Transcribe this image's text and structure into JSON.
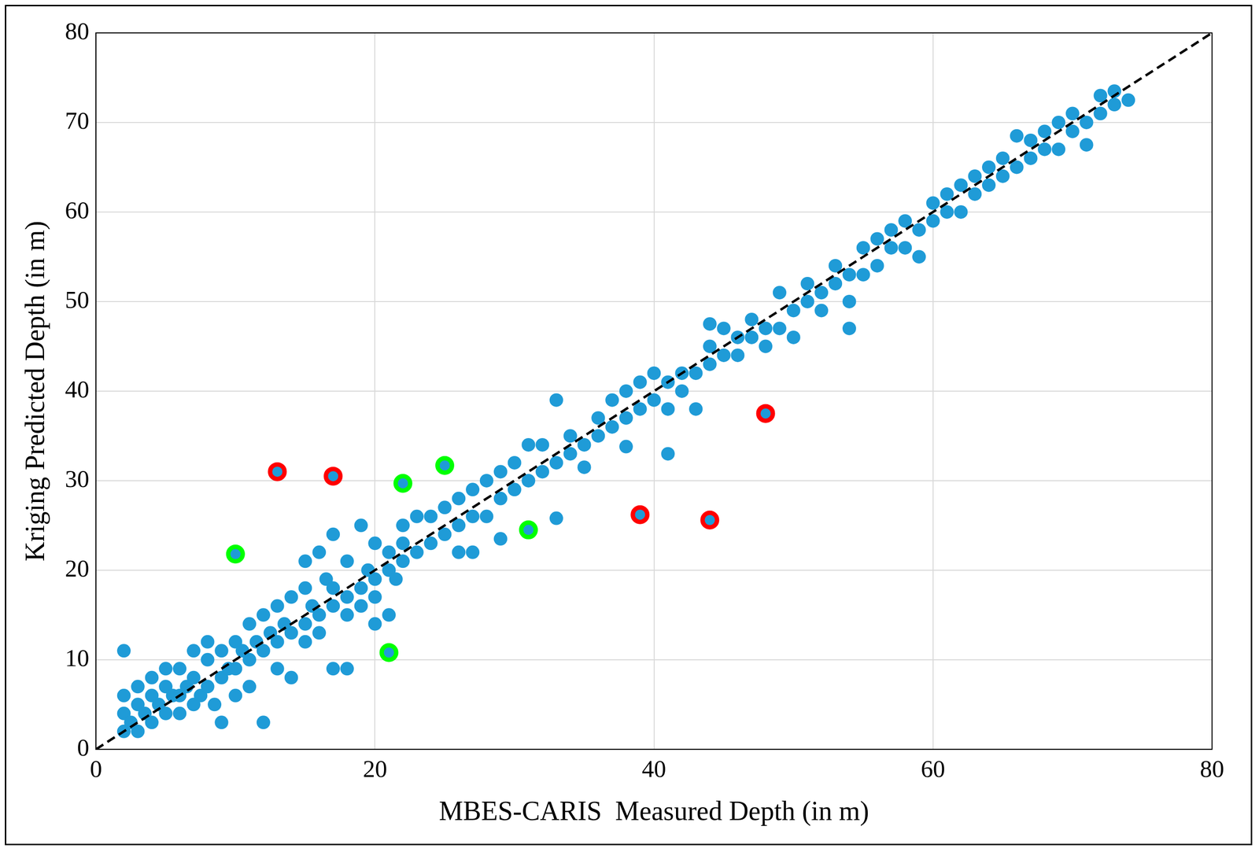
{
  "chart_data": {
    "type": "scatter",
    "x_label": "MBES-CARIS  Measured Depth (in m)",
    "y_label": "Kriging Predicted Depth (in m)",
    "xlim": [
      0,
      80
    ],
    "xticks": [
      0,
      20,
      40,
      60,
      80
    ],
    "ylim": [
      0,
      80
    ],
    "yticks": [
      0,
      10,
      20,
      30,
      40,
      50,
      60,
      70,
      80
    ],
    "grid": true,
    "series": [
      {
        "color": "#1f9bd7",
        "marker": "circle",
        "x": [
          2,
          2,
          2,
          2,
          2.5,
          3,
          3,
          3,
          3.5,
          4,
          4,
          4,
          4.5,
          5,
          5,
          5,
          5.5,
          6,
          6,
          6,
          6.5,
          7,
          7,
          7,
          7.5,
          8,
          8,
          8,
          8.5,
          9,
          9,
          9,
          9.5,
          10,
          10,
          10,
          10.5,
          11,
          11,
          11,
          11.5,
          12,
          12,
          12,
          12.5,
          13,
          13,
          13,
          13.5,
          14,
          14,
          14,
          15,
          15,
          15,
          15,
          15.5,
          16,
          16,
          16,
          16.5,
          17,
          17,
          17,
          17,
          18,
          18,
          18,
          18,
          19,
          19,
          19,
          19.5,
          20,
          20,
          20,
          20,
          21,
          21,
          21,
          21.5,
          22,
          22,
          22,
          23,
          23,
          24,
          24,
          25,
          25,
          26,
          26,
          26,
          27,
          27,
          27,
          28,
          28,
          29,
          29,
          29,
          30,
          30,
          31,
          31,
          32,
          32,
          33,
          33,
          33,
          34,
          34,
          35,
          35,
          36,
          36,
          37,
          37,
          38,
          38,
          38,
          39,
          39,
          40,
          40,
          41,
          41,
          41,
          42,
          42,
          43,
          43,
          44,
          44,
          44,
          45,
          45,
          46,
          46,
          47,
          47,
          48,
          48,
          49,
          49,
          50,
          50,
          51,
          51,
          52,
          52,
          53,
          53,
          54,
          54,
          54,
          55,
          55,
          56,
          56,
          57,
          57,
          58,
          58,
          59,
          59,
          60,
          60,
          61,
          61,
          62,
          62,
          63,
          63,
          64,
          64,
          65,
          65,
          66,
          66,
          67,
          67,
          68,
          68,
          69,
          69,
          70,
          70,
          71,
          71,
          72,
          72,
          73,
          73,
          74
        ],
        "values": [
          2,
          4,
          6,
          11,
          3,
          2,
          5,
          7,
          4,
          3,
          6,
          8,
          5,
          4,
          7,
          9,
          6,
          4,
          6,
          9,
          7,
          5,
          8,
          11,
          6,
          7,
          10,
          12,
          5,
          8,
          3,
          11,
          9,
          9,
          12,
          6,
          11,
          10,
          14,
          7,
          12,
          3,
          11,
          15,
          13,
          12,
          16,
          9,
          14,
          13,
          17,
          8,
          14,
          18,
          21,
          12,
          16,
          15,
          22,
          13,
          19,
          16,
          24,
          9,
          18,
          17,
          15,
          21,
          9,
          18,
          25,
          16,
          20,
          19,
          17,
          23,
          14,
          20,
          22,
          15,
          19,
          21,
          23,
          25,
          22,
          26,
          23,
          26,
          24,
          27,
          22,
          25,
          28,
          22,
          26,
          29,
          26,
          30,
          28,
          23.5,
          31,
          29,
          32,
          30,
          34,
          31,
          34,
          32,
          39,
          25.8,
          33,
          35,
          31.5,
          34,
          35,
          37,
          36,
          39,
          33.8,
          37,
          40,
          38,
          41,
          39,
          42,
          33,
          38,
          41,
          40,
          42,
          38,
          42,
          43,
          47.5,
          45,
          44,
          47,
          44,
          46,
          46,
          48,
          45,
          47,
          47,
          51,
          46,
          49,
          50,
          52,
          49,
          51,
          52,
          54,
          47,
          50,
          53,
          53,
          56,
          54,
          57,
          56,
          58,
          56,
          59,
          55,
          58,
          59,
          61,
          60,
          62,
          60,
          63,
          62,
          64,
          63,
          65,
          64,
          66,
          65,
          68.5,
          66,
          68,
          67,
          69,
          67,
          70,
          69,
          71,
          67.5,
          70,
          71,
          73,
          72,
          73.5,
          72.5
        ]
      },
      {
        "color": "#ff0000",
        "marker": "ring",
        "x": [
          13,
          17,
          39,
          44,
          48
        ],
        "values": [
          31,
          30.5,
          26.2,
          25.6,
          37.5
        ]
      },
      {
        "color": "#00ff00",
        "marker": "ring",
        "x": [
          10,
          22,
          25,
          31,
          21
        ],
        "values": [
          21.8,
          29.7,
          31.7,
          24.5,
          10.8
        ]
      },
      {
        "type": "line",
        "line_style": "dashed",
        "color": "#000000",
        "x": [
          0,
          80
        ],
        "values": [
          0,
          80
        ]
      }
    ]
  }
}
